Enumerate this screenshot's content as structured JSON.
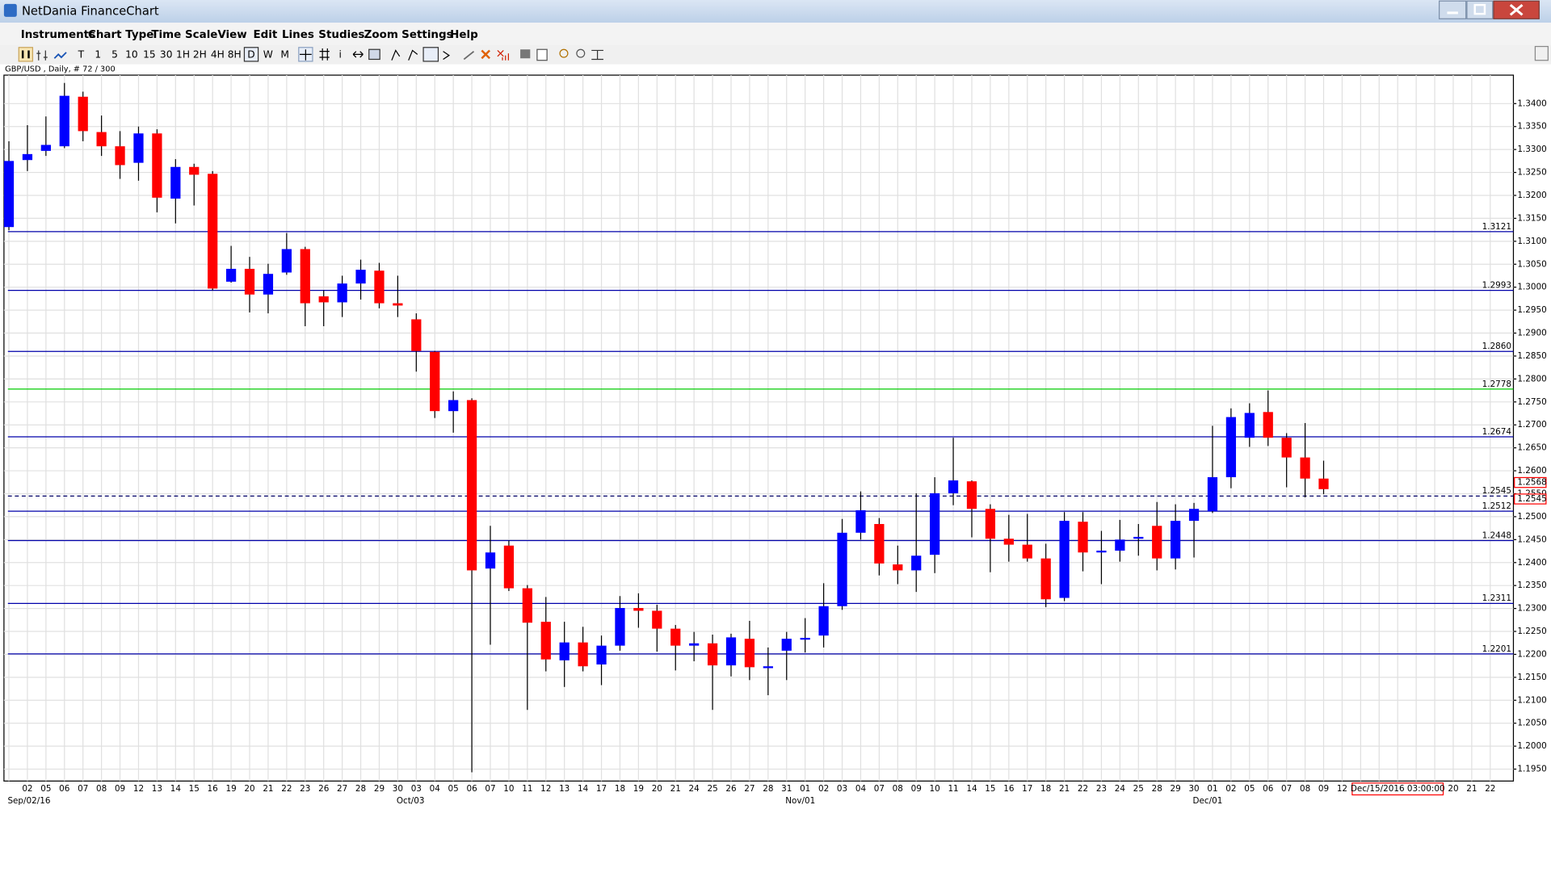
{
  "window": {
    "title": "NetDania FinanceChart"
  },
  "menu": [
    "Instruments",
    "Chart Type",
    "Time Scale",
    "View",
    "Edit",
    "Lines",
    "Studies",
    "Zoom",
    "Settings",
    "Help"
  ],
  "toolbar": [
    "T",
    "1",
    "5",
    "10",
    "15",
    "30",
    "1H",
    "2H",
    "4H",
    "8H",
    "D",
    "W",
    "M",
    "i"
  ],
  "chart_data": {
    "type": "candlestick",
    "title": "GBP/USD , Daily, # 72 / 300",
    "categories": [
      null,
      "02",
      "05",
      "06",
      "07",
      "08",
      "09",
      "12",
      "13",
      "14",
      "15",
      "16",
      "19",
      "20",
      "21",
      "22",
      "23",
      "26",
      "27",
      "28",
      "29",
      "30",
      "03",
      "04",
      "05",
      "06",
      "07",
      "10",
      "11",
      "12",
      "13",
      "14",
      "17",
      "18",
      "19",
      "20",
      "21",
      "24",
      "25",
      "26",
      "27",
      "28",
      "31",
      "01",
      "02",
      "03",
      "04",
      "07",
      "08",
      "09",
      "10",
      "11",
      "14",
      "15",
      "16",
      "17",
      "18",
      "21",
      "22",
      "23",
      "24",
      "25",
      "28",
      "29",
      "30",
      "01",
      "02",
      "05",
      "06",
      "07",
      "08",
      "09",
      "12",
      null,
      null,
      null,
      null,
      null,
      "20",
      "21",
      "22"
    ],
    "month_labels": [
      {
        "index": 1,
        "label": "Sep/02/16"
      },
      {
        "index": 22,
        "label": "Oct/03"
      },
      {
        "index": 43,
        "label": "Nov/01"
      },
      {
        "index": 65,
        "label": "Dec/01"
      }
    ],
    "open": [
      1.3131,
      1.3277,
      1.3297,
      1.3307,
      1.3415,
      1.3338,
      1.3307,
      1.3271,
      1.3335,
      1.3193,
      1.3262,
      1.3247,
      1.3012,
      1.304,
      1.2984,
      1.3032,
      1.3083,
      1.298,
      1.2967,
      1.3008,
      1.3036,
      1.2965,
      1.293,
      1.2859,
      1.273,
      1.2754,
      1.2387,
      1.2437,
      1.2344,
      1.2271,
      1.2187,
      1.2226,
      1.2178,
      1.2219,
      1.2301,
      1.2295,
      1.2256,
      1.2219,
      1.2224,
      1.2176,
      1.2234,
      1.217,
      1.2208,
      1.2232,
      1.2241,
      1.2305,
      1.2465,
      1.2484,
      1.2396,
      1.2383,
      1.2417,
      1.2551,
      1.2577,
      1.2517,
      1.2452,
      1.2439,
      1.2409,
      1.2323,
      1.2489,
      1.2422,
      1.2426,
      1.2452,
      1.248,
      1.2409,
      1.2491,
      1.2512,
      1.2586,
      1.2672,
      1.2728,
      1.2672,
      1.2629,
      1.2583,
      null,
      null,
      null,
      null,
      null,
      null,
      null,
      null,
      null
    ],
    "high": [
      1.3318,
      1.3353,
      1.3372,
      1.3445,
      1.3426,
      1.3374,
      1.334,
      1.335,
      1.3344,
      1.3279,
      1.3269,
      1.3253,
      1.309,
      1.3066,
      1.3051,
      1.3118,
      1.3088,
      1.2993,
      1.3025,
      1.306,
      1.3053,
      1.3025,
      1.2943,
      1.2861,
      1.2773,
      1.2758,
      1.248,
      1.2448,
      1.2351,
      1.2325,
      1.2271,
      1.226,
      1.2241,
      1.2327,
      1.2333,
      1.2308,
      1.2264,
      1.2249,
      1.2243,
      1.2245,
      1.2273,
      1.2215,
      1.2249,
      1.2279,
      1.2355,
      1.2495,
      1.2555,
      1.2497,
      1.2437,
      1.2551,
      1.2586,
      1.2672,
      1.2579,
      1.2527,
      1.2504,
      1.2506,
      1.2441,
      1.251,
      1.251,
      1.2469,
      1.2493,
      1.2484,
      1.2532,
      1.2527,
      1.253,
      1.2698,
      1.2736,
      1.2747,
      1.2775,
      1.2682,
      1.2704,
      1.2622,
      null,
      null,
      null,
      null,
      null,
      null,
      null,
      null,
      null
    ],
    "low": [
      1.3124,
      1.3253,
      1.3286,
      1.3303,
      1.3318,
      1.3286,
      1.3236,
      1.3232,
      1.3163,
      1.3139,
      1.3178,
      1.2993,
      1.301,
      1.2945,
      1.2943,
      1.3027,
      1.2915,
      1.2915,
      1.2935,
      1.2973,
      1.2954,
      1.2935,
      1.2816,
      1.2715,
      1.2683,
      1.1943,
      1.2221,
      1.2338,
      1.2079,
      1.2163,
      1.2129,
      1.2163,
      1.2133,
      1.2208,
      1.2258,
      1.2206,
      1.2165,
      1.2185,
      1.2079,
      1.2152,
      1.2144,
      1.2111,
      1.2144,
      1.2204,
      1.2215,
      1.2297,
      1.245,
      1.2372,
      1.2353,
      1.2336,
      1.2377,
      1.2525,
      1.2455,
      1.2379,
      1.2402,
      1.2402,
      1.2303,
      1.2316,
      1.2381,
      1.2353,
      1.2402,
      1.2415,
      1.2383,
      1.2385,
      1.2411,
      1.2508,
      1.2562,
      1.2652,
      1.2654,
      1.2564,
      1.2542,
      1.2549,
      null,
      null,
      null,
      null,
      null,
      null,
      null,
      null,
      null
    ],
    "close": [
      1.3275,
      1.329,
      1.331,
      1.3417,
      1.334,
      1.3307,
      1.3266,
      1.3335,
      1.3195,
      1.3262,
      1.3245,
      1.2997,
      1.304,
      1.2984,
      1.3029,
      1.3083,
      1.2965,
      1.2967,
      1.3008,
      1.3038,
      1.2965,
      1.296,
      1.2861,
      1.273,
      1.2754,
      1.2383,
      1.2422,
      1.2344,
      1.2269,
      1.2189,
      1.2226,
      1.2174,
      1.2219,
      1.2301,
      1.2295,
      1.2256,
      1.2219,
      1.2224,
      1.2176,
      1.2237,
      1.2172,
      1.2174,
      1.2234,
      1.2236,
      1.2305,
      1.2465,
      1.2514,
      1.2398,
      1.2383,
      1.2415,
      1.2551,
      1.2579,
      1.2517,
      1.2452,
      1.2439,
      1.2409,
      1.232,
      1.2491,
      1.2422,
      1.2426,
      1.245,
      1.2456,
      1.2409,
      1.2491,
      1.2517,
      1.2586,
      1.2717,
      1.2726,
      1.2672,
      1.2629,
      1.2583,
      1.256,
      null,
      null,
      null,
      null,
      null,
      null,
      null,
      null,
      null
    ],
    "up_color": "#0000ff",
    "down_color": "#ff0000",
    "wick_color": "#000000",
    "ylim": [
      1.1924,
      1.3462
    ],
    "yticks": [
      {
        "value": 1.195,
        "label": "1.1950"
      },
      {
        "value": 1.2,
        "label": "1.2000"
      },
      {
        "value": 1.205,
        "label": "1.2050"
      },
      {
        "value": 1.21,
        "label": "1.2100"
      },
      {
        "value": 1.215,
        "label": "1.2150"
      },
      {
        "value": 1.22,
        "label": "1.2200"
      },
      {
        "value": 1.225,
        "label": "1.2250"
      },
      {
        "value": 1.23,
        "label": "1.2300"
      },
      {
        "value": 1.235,
        "label": "1.2350"
      },
      {
        "value": 1.24,
        "label": "1.2400"
      },
      {
        "value": 1.245,
        "label": "1.2450"
      },
      {
        "value": 1.25,
        "label": "1.2500"
      },
      {
        "value": 1.255,
        "label": "1.2550"
      },
      {
        "value": 1.26,
        "label": "1.2600"
      },
      {
        "value": 1.265,
        "label": "1.2650"
      },
      {
        "value": 1.27,
        "label": "1.2700"
      },
      {
        "value": 1.275,
        "label": "1.2750"
      },
      {
        "value": 1.28,
        "label": "1.2800"
      },
      {
        "value": 1.285,
        "label": "1.2850"
      },
      {
        "value": 1.29,
        "label": "1.2900"
      },
      {
        "value": 1.295,
        "label": "1.2950"
      },
      {
        "value": 1.3,
        "label": "1.3000"
      },
      {
        "value": 1.305,
        "label": "1.3050"
      },
      {
        "value": 1.31,
        "label": "1.3100"
      },
      {
        "value": 1.315,
        "label": "1.3150"
      },
      {
        "value": 1.32,
        "label": "1.3200"
      },
      {
        "value": 1.325,
        "label": "1.3250"
      },
      {
        "value": 1.33,
        "label": "1.3300"
      },
      {
        "value": 1.335,
        "label": "1.3350"
      },
      {
        "value": 1.34,
        "label": "1.3400"
      }
    ],
    "grid": true,
    "hlines": [
      {
        "value": 1.3121,
        "label": "1.3121",
        "color": "#0000aa"
      },
      {
        "value": 1.2993,
        "label": "1.2993",
        "color": "#0000aa"
      },
      {
        "value": 1.286,
        "label": "1.2860",
        "color": "#0000aa"
      },
      {
        "value": 1.2778,
        "label": "1.2778",
        "color": "#00cc00"
      },
      {
        "value": 1.2674,
        "label": "1.2674",
        "color": "#0000aa"
      },
      {
        "value": 1.2545,
        "label": "1.2545",
        "color": "#000066",
        "dashed": true
      },
      {
        "value": 1.2512,
        "label": "1.2512",
        "color": "#0000aa"
      },
      {
        "value": 1.2448,
        "label": "1.2448",
        "color": "#0000aa"
      },
      {
        "value": 1.2311,
        "label": "1.2311",
        "color": "#0000aa"
      },
      {
        "value": 1.2201,
        "label": "1.2201",
        "color": "#0000aa"
      }
    ],
    "price_markers": [
      {
        "value": 1.2568,
        "color": "#ff0000"
      },
      {
        "value": 1.2545,
        "color": "#ff0000"
      }
    ],
    "cursor_label": "Dec/15/2016 03:00:00"
  }
}
